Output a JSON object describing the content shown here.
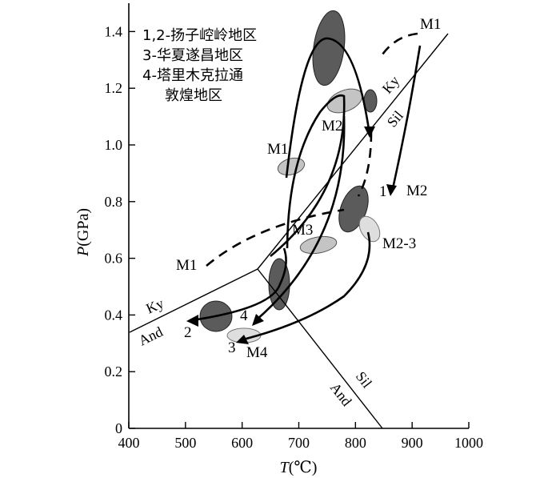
{
  "chart_data": {
    "type": "diagram",
    "xlabel_italic": "T",
    "xlabel_unit": "(℃)",
    "ylabel_italic": "P",
    "ylabel_unit": "(GPa)",
    "xlim": [
      400,
      1000
    ],
    "ylim": [
      0,
      1.5
    ],
    "x_ticks": [
      "400",
      "500",
      "600",
      "700",
      "800",
      "900",
      "1000"
    ],
    "y_ticks": [
      "0",
      "0.2",
      "0.4",
      "0.6",
      "0.8",
      "1.0",
      "1.2",
      "1.4"
    ],
    "legend": [
      "1,2-扬子崆岭地区",
      "3-华夏遂昌地区",
      "4-塔里木克拉通",
      "敦煌地区"
    ],
    "minerals": {
      "ky_upper": "Ky",
      "sil_upper": "Sil",
      "ky_lower": "Ky",
      "and_lower": "And",
      "sil_lower": "Sil",
      "and_right": "And"
    },
    "labels": {
      "m1_top_right": "M1",
      "m2_upper": "M2",
      "m1_mid": "M1",
      "num1": "1",
      "m2_right": "M2",
      "m3": "M3",
      "m2_3": "M2-3",
      "m1_left": "M1",
      "num2": "2",
      "num4": "4",
      "num3": "3",
      "m4": "M4"
    },
    "colors": {
      "dark_ellipse": "#5b5b5b",
      "light_ellipse": "#c4c4c4",
      "lightest_ellipse": "#dedede"
    }
  }
}
